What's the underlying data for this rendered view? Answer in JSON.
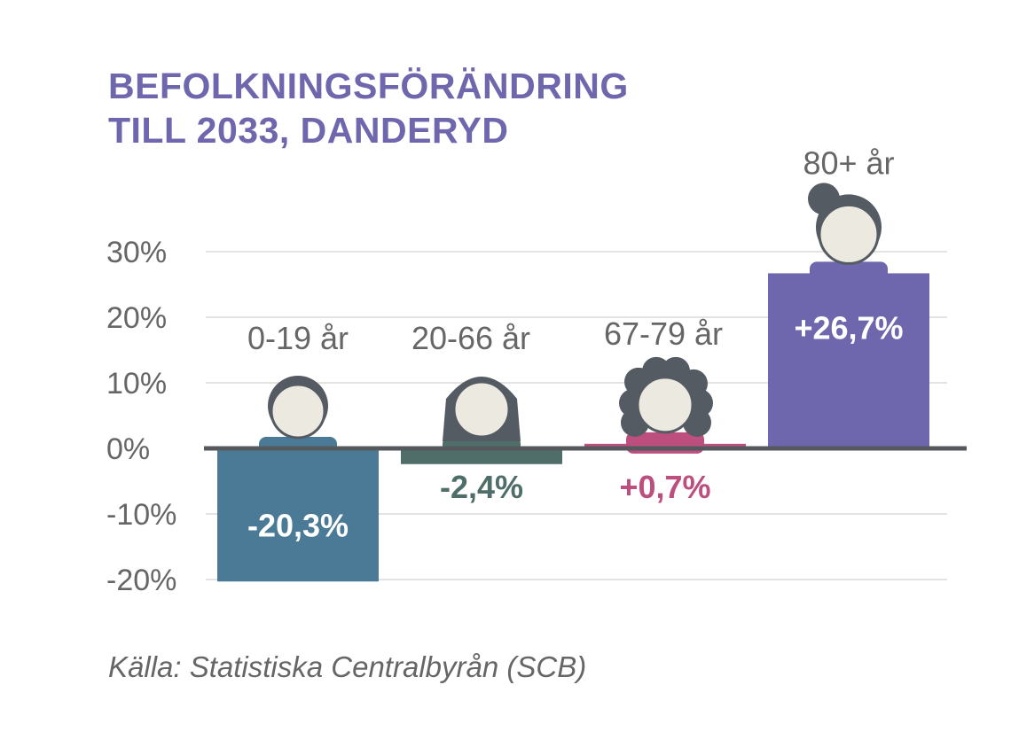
{
  "title": {
    "line1": "BEFOLKNINGSFÖRÄNDRING",
    "line2_bold": "TILL 2033,",
    "line2_rest": " DANDERYD"
  },
  "source": "Källa: Statistiska Centralbyrån (SCB)",
  "chart_data": {
    "type": "bar",
    "title": "BEFOLKNINGSFÖRÄNDRING TILL 2033, DANDERYD",
    "categories": [
      "0-19 år",
      "20-66 år",
      "67-79 år",
      "80+ år"
    ],
    "values": [
      -20.3,
      -2.4,
      0.7,
      26.7
    ],
    "value_labels": [
      "-20,3%",
      "-2,4%",
      "+0,7%",
      "+26,7%"
    ],
    "colors": [
      "#4a7a96",
      "#4f6e6a",
      "#bc4f7e",
      "#6f67ad"
    ],
    "icons": [
      "child-icon",
      "adult-icon",
      "senior-icon",
      "elderly-icon"
    ],
    "yticks": [
      "30%",
      "20%",
      "10%",
      "0%",
      "-10%",
      "-20%"
    ],
    "ylim": [
      -20,
      30
    ],
    "grid": true,
    "legend": "none"
  }
}
